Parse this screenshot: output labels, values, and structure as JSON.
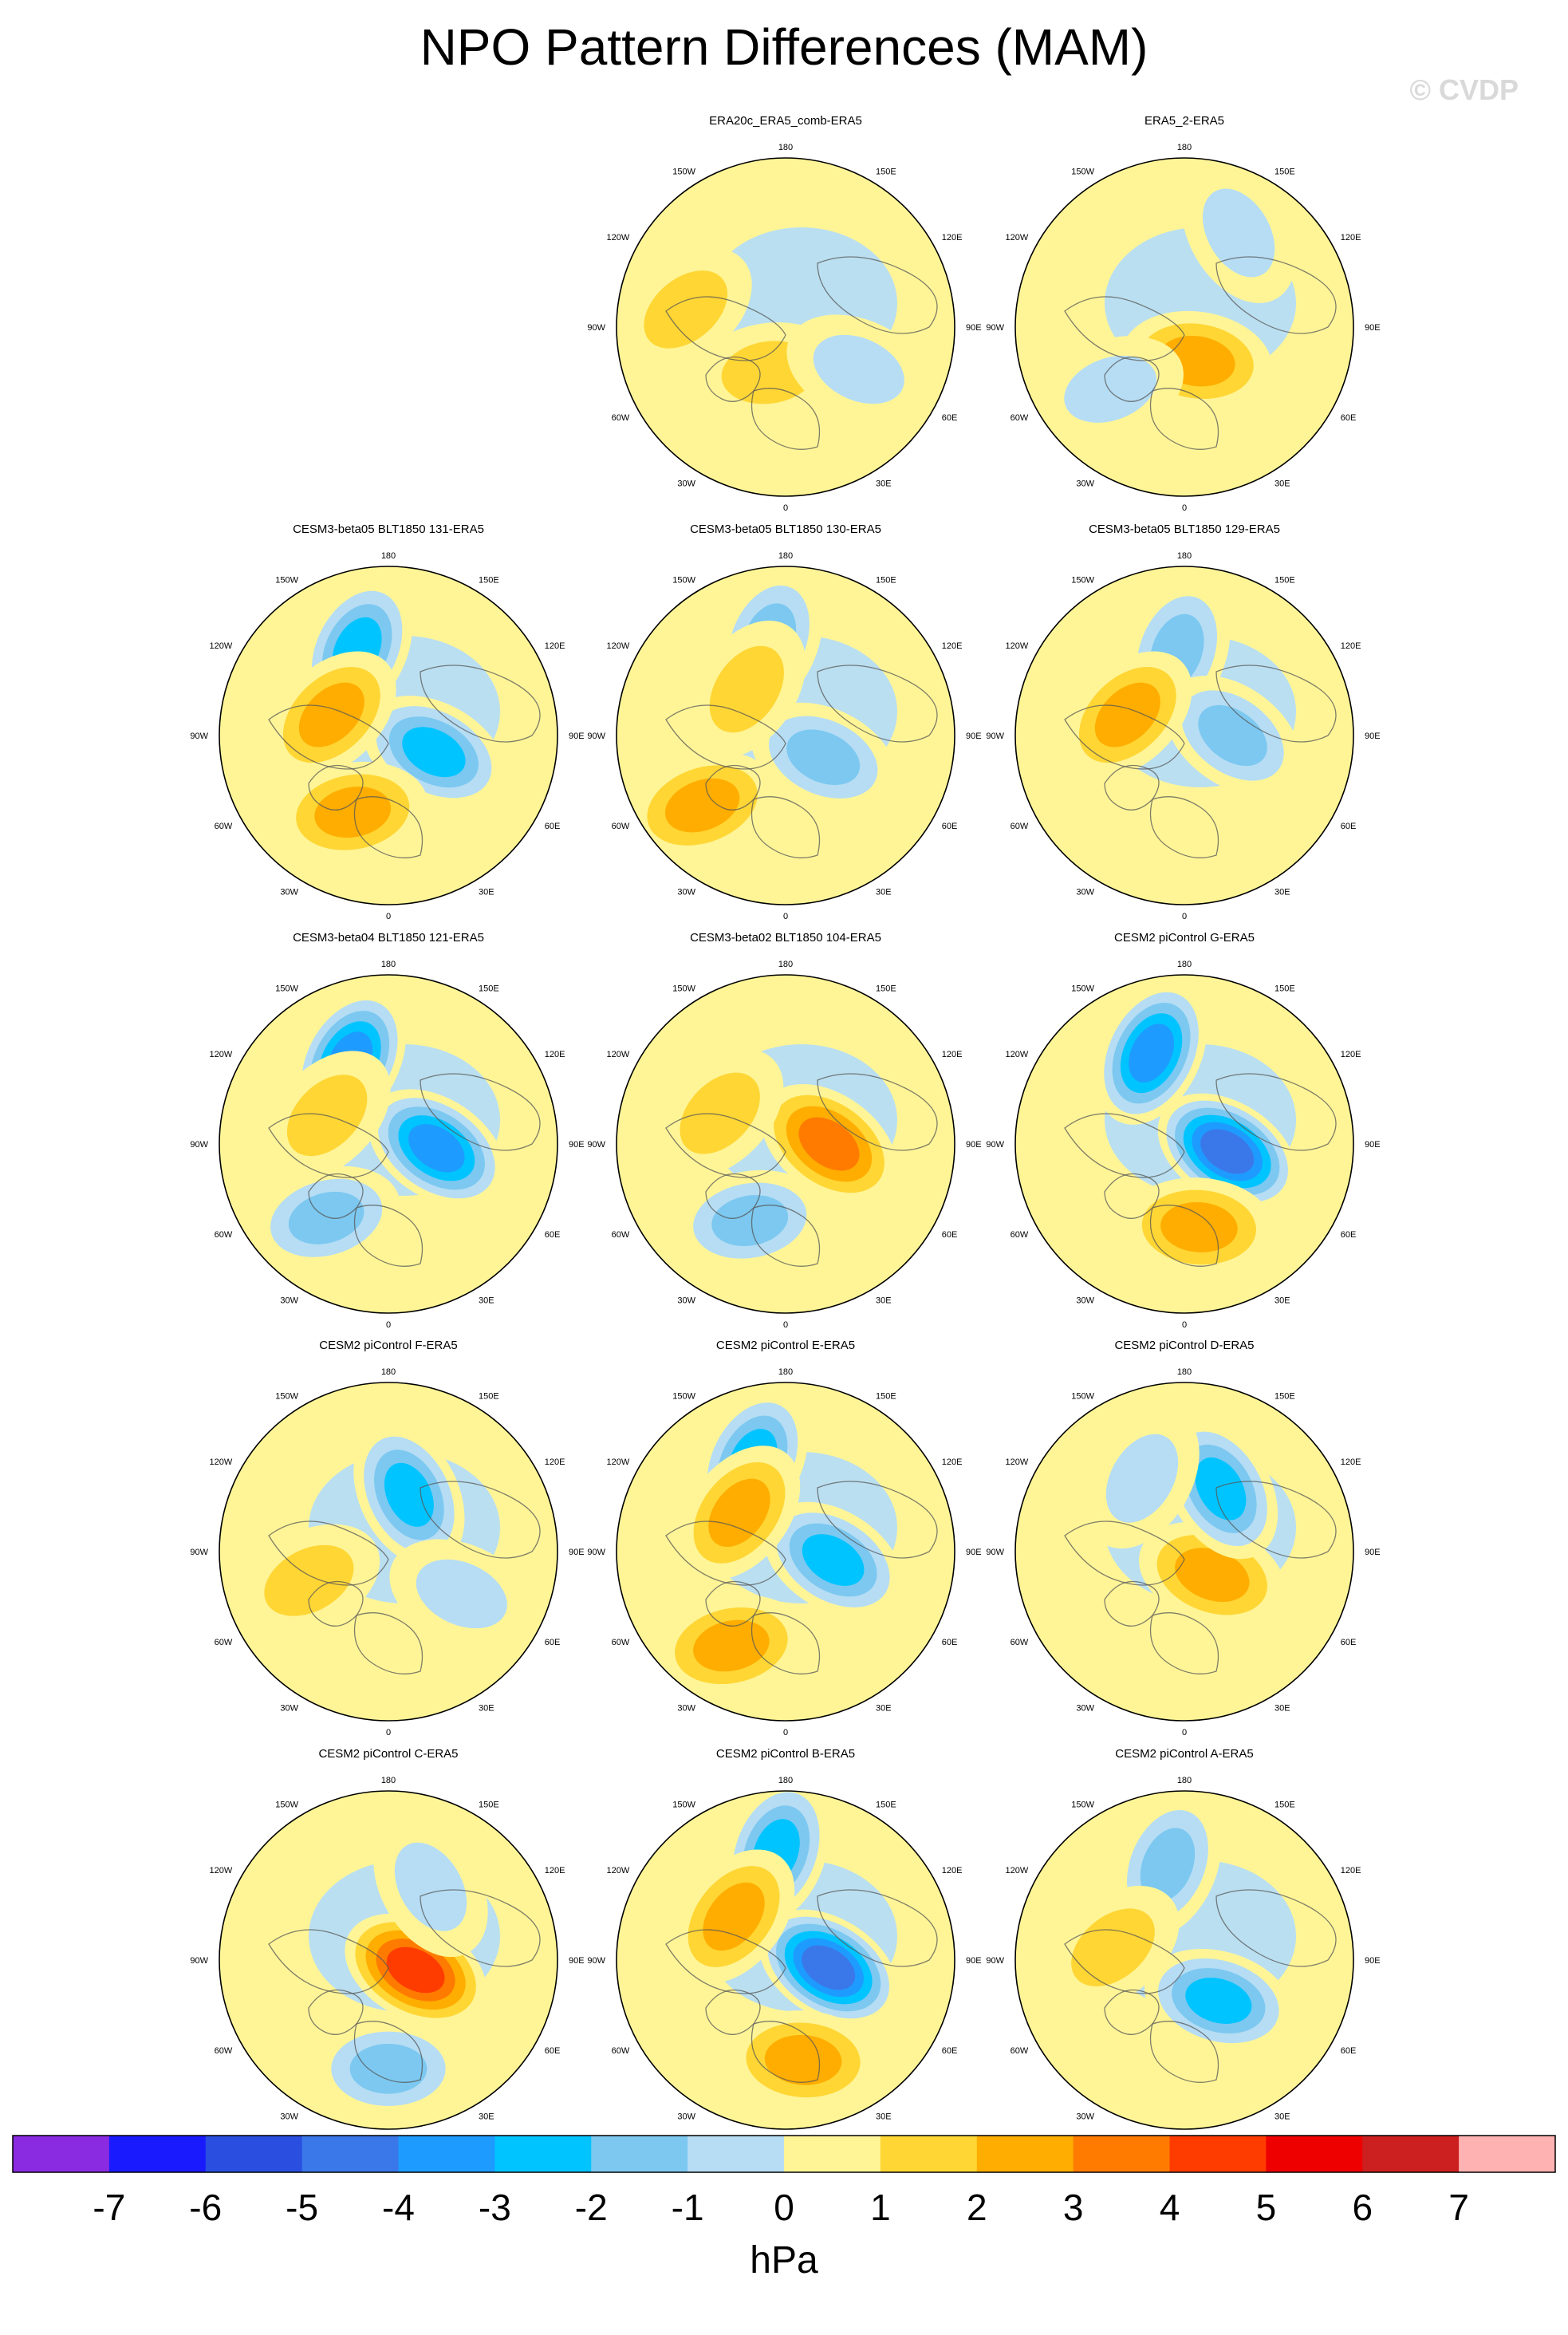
{
  "title": "NPO Pattern Differences (MAM)",
  "watermark": "© CVDP",
  "units": "hPa",
  "colorbar": {
    "ticks": [
      "-7",
      "-6",
      "-5",
      "-4",
      "-3",
      "-2",
      "-1",
      "0",
      "1",
      "2",
      "3",
      "4",
      "5",
      "6",
      "7"
    ],
    "colors": [
      "#8a2be2",
      "#1a1aff",
      "#2a4fe0",
      "#3a78ea",
      "#1e9bff",
      "#00c4ff",
      "#7cc8f0",
      "#b6ddf4",
      "#fff597",
      "#ffd634",
      "#ffad00",
      "#ff7b00",
      "#ff3c00",
      "#ee0000",
      "#cc1f1f",
      "#ffb2b2"
    ]
  },
  "map_labels": {
    "top": "180",
    "bottom": "0",
    "left": "90W",
    "right": "90E",
    "upper_left_1": "150W",
    "upper_left_2": "120W",
    "upper_right_1": "150E",
    "upper_right_2": "120E",
    "lower_left_1": "60W",
    "lower_left_2": "30W",
    "lower_right_1": "60E",
    "lower_right_2": "30E"
  },
  "chart_data": {
    "type": "polar-stereographic-contour-panels",
    "variable": "sea level pressure difference",
    "season": "MAM",
    "value_range": [
      -7,
      7
    ],
    "panels": [
      {
        "title": "ERA20c_ERA5_comb-ERA5",
        "row": 0,
        "col": 1,
        "center_value": 1,
        "features": [
          {
            "lat": 70,
            "lon": -20,
            "value": 1
          },
          {
            "lat": 55,
            "lon": 60,
            "value": -1
          },
          {
            "lat": 48,
            "lon": -100,
            "value": 0
          }
        ]
      },
      {
        "title": "ERA5_2-ERA5",
        "row": 0,
        "col": 2,
        "center_value": 2,
        "features": [
          {
            "lat": 75,
            "lon": 20,
            "value": 2
          },
          {
            "lat": 45,
            "lon": 150,
            "value": -1
          },
          {
            "lat": 50,
            "lon": -50,
            "value": -1
          }
        ]
      },
      {
        "title": "CESM3-beta05 BLT1850 131-ERA5",
        "row": 1,
        "col": 0,
        "center_value": -3,
        "features": [
          {
            "lat": 52,
            "lon": -160,
            "value": -3
          },
          {
            "lat": 70,
            "lon": 70,
            "value": -3
          },
          {
            "lat": 55,
            "lon": -25,
            "value": 2
          },
          {
            "lat": 65,
            "lon": -110,
            "value": 2
          }
        ]
      },
      {
        "title": "CESM3-beta05 BLT1850 130-ERA5",
        "row": 1,
        "col": 1,
        "center_value": -2,
        "features": [
          {
            "lat": 50,
            "lon": -170,
            "value": -2
          },
          {
            "lat": 72,
            "lon": 60,
            "value": -2
          },
          {
            "lat": 45,
            "lon": -50,
            "value": 2
          },
          {
            "lat": 65,
            "lon": -140,
            "value": 1
          }
        ]
      },
      {
        "title": "CESM3-beta05 BLT1850 129-ERA5",
        "row": 1,
        "col": 2,
        "center_value": -2,
        "features": [
          {
            "lat": 55,
            "lon": -175,
            "value": -2
          },
          {
            "lat": 70,
            "lon": 90,
            "value": -2
          },
          {
            "lat": 65,
            "lon": -110,
            "value": 2
          }
        ]
      },
      {
        "title": "CESM3-beta04 BLT1850 121-ERA5",
        "row": 2,
        "col": 0,
        "center_value": -4,
        "features": [
          {
            "lat": 52,
            "lon": -155,
            "value": -4
          },
          {
            "lat": 70,
            "lon": 85,
            "value": -4
          },
          {
            "lat": 62,
            "lon": -115,
            "value": 1
          },
          {
            "lat": 50,
            "lon": -40,
            "value": -2
          }
        ]
      },
      {
        "title": "CESM3-beta02 BLT1850 104-ERA5",
        "row": 2,
        "col": 1,
        "center_value": 3,
        "features": [
          {
            "lat": 72,
            "lon": 90,
            "value": 3
          },
          {
            "lat": 55,
            "lon": -25,
            "value": -2
          },
          {
            "lat": 60,
            "lon": -115,
            "value": 1
          }
        ]
      },
      {
        "title": "CESM2 piControl G-ERA5",
        "row": 2,
        "col": 2,
        "center_value": -5,
        "features": [
          {
            "lat": 72,
            "lon": 80,
            "value": -5
          },
          {
            "lat": 50,
            "lon": -160,
            "value": -4
          },
          {
            "lat": 55,
            "lon": 10,
            "value": 2
          }
        ]
      },
      {
        "title": "CESM2 piControl F-ERA5",
        "row": 3,
        "col": 0,
        "center_value": -3,
        "features": [
          {
            "lat": 65,
            "lon": 160,
            "value": -3
          },
          {
            "lat": 55,
            "lon": 60,
            "value": -1
          },
          {
            "lat": 55,
            "lon": -70,
            "value": 0
          }
        ]
      },
      {
        "title": "CESM2 piControl E-ERA5",
        "row": 3,
        "col": 1,
        "center_value": -3,
        "features": [
          {
            "lat": 50,
            "lon": -160,
            "value": -3
          },
          {
            "lat": 70,
            "lon": 80,
            "value": -3
          },
          {
            "lat": 45,
            "lon": -30,
            "value": 2
          },
          {
            "lat": 65,
            "lon": -130,
            "value": 2
          }
        ]
      },
      {
        "title": "CESM2 piControl D-ERA5",
        "row": 3,
        "col": 2,
        "center_value": 2,
        "features": [
          {
            "lat": 75,
            "lon": 50,
            "value": 2
          },
          {
            "lat": 60,
            "lon": 150,
            "value": -3
          },
          {
            "lat": 55,
            "lon": -150,
            "value": -1
          }
        ]
      },
      {
        "title": "CESM2 piControl C-ERA5",
        "row": 4,
        "col": 0,
        "center_value": 4,
        "features": [
          {
            "lat": 78,
            "lon": 70,
            "value": 4
          },
          {
            "lat": 45,
            "lon": 0,
            "value": -2
          },
          {
            "lat": 55,
            "lon": 150,
            "value": -1
          }
        ]
      },
      {
        "title": "CESM2 piControl B-ERA5",
        "row": 4,
        "col": 1,
        "center_value": -5,
        "features": [
          {
            "lat": 72,
            "lon": 80,
            "value": -5
          },
          {
            "lat": 45,
            "lon": -175,
            "value": -3
          },
          {
            "lat": 62,
            "lon": -130,
            "value": 2
          },
          {
            "lat": 48,
            "lon": 10,
            "value": 2
          }
        ]
      },
      {
        "title": "CESM2 piControl A-ERA5",
        "row": 4,
        "col": 2,
        "center_value": -3,
        "features": [
          {
            "lat": 68,
            "lon": 40,
            "value": -3
          },
          {
            "lat": 50,
            "lon": -170,
            "value": -2
          },
          {
            "lat": 60,
            "lon": -100,
            "value": 0
          }
        ]
      }
    ]
  }
}
